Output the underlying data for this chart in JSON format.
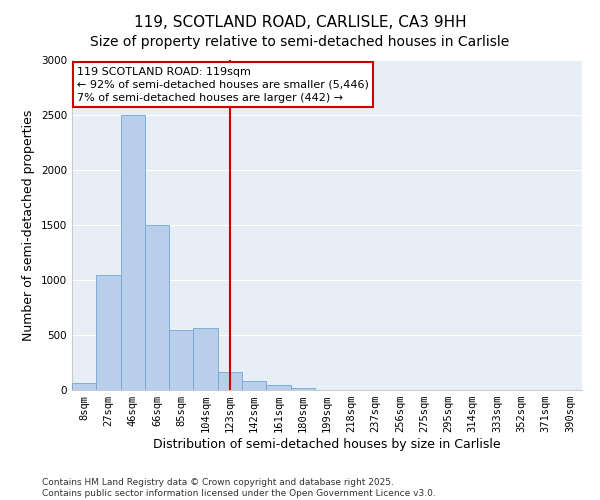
{
  "title_line1": "119, SCOTLAND ROAD, CARLISLE, CA3 9HH",
  "title_line2": "Size of property relative to semi-detached houses in Carlisle",
  "xlabel": "Distribution of semi-detached houses by size in Carlisle",
  "ylabel": "Number of semi-detached properties",
  "categories": [
    "8sqm",
    "27sqm",
    "46sqm",
    "66sqm",
    "85sqm",
    "104sqm",
    "123sqm",
    "142sqm",
    "161sqm",
    "180sqm",
    "199sqm",
    "218sqm",
    "237sqm",
    "256sqm",
    "275sqm",
    "295sqm",
    "314sqm",
    "333sqm",
    "352sqm",
    "371sqm",
    "390sqm"
  ],
  "values": [
    60,
    1050,
    2500,
    1500,
    550,
    560,
    160,
    80,
    50,
    20,
    0,
    0,
    0,
    0,
    0,
    0,
    0,
    0,
    0,
    0,
    0
  ],
  "bar_color": "#b8ceea",
  "bar_edge_color": "#6fa8d5",
  "vline_color": "#cc0000",
  "annotation_text": "119 SCOTLAND ROAD: 119sqm\n← 92% of semi-detached houses are smaller (5,446)\n7% of semi-detached houses are larger (442) →",
  "annotation_box_color": "#cc0000",
  "ylim": [
    0,
    3000
  ],
  "yticks": [
    0,
    500,
    1000,
    1500,
    2000,
    2500,
    3000
  ],
  "background_color": "#e8eef5",
  "grid_color": "#ffffff",
  "footer_text": "Contains HM Land Registry data © Crown copyright and database right 2025.\nContains public sector information licensed under the Open Government Licence v3.0.",
  "title_fontsize": 11,
  "subtitle_fontsize": 10,
  "axis_label_fontsize": 9,
  "tick_fontsize": 7.5,
  "footer_fontsize": 6.5
}
